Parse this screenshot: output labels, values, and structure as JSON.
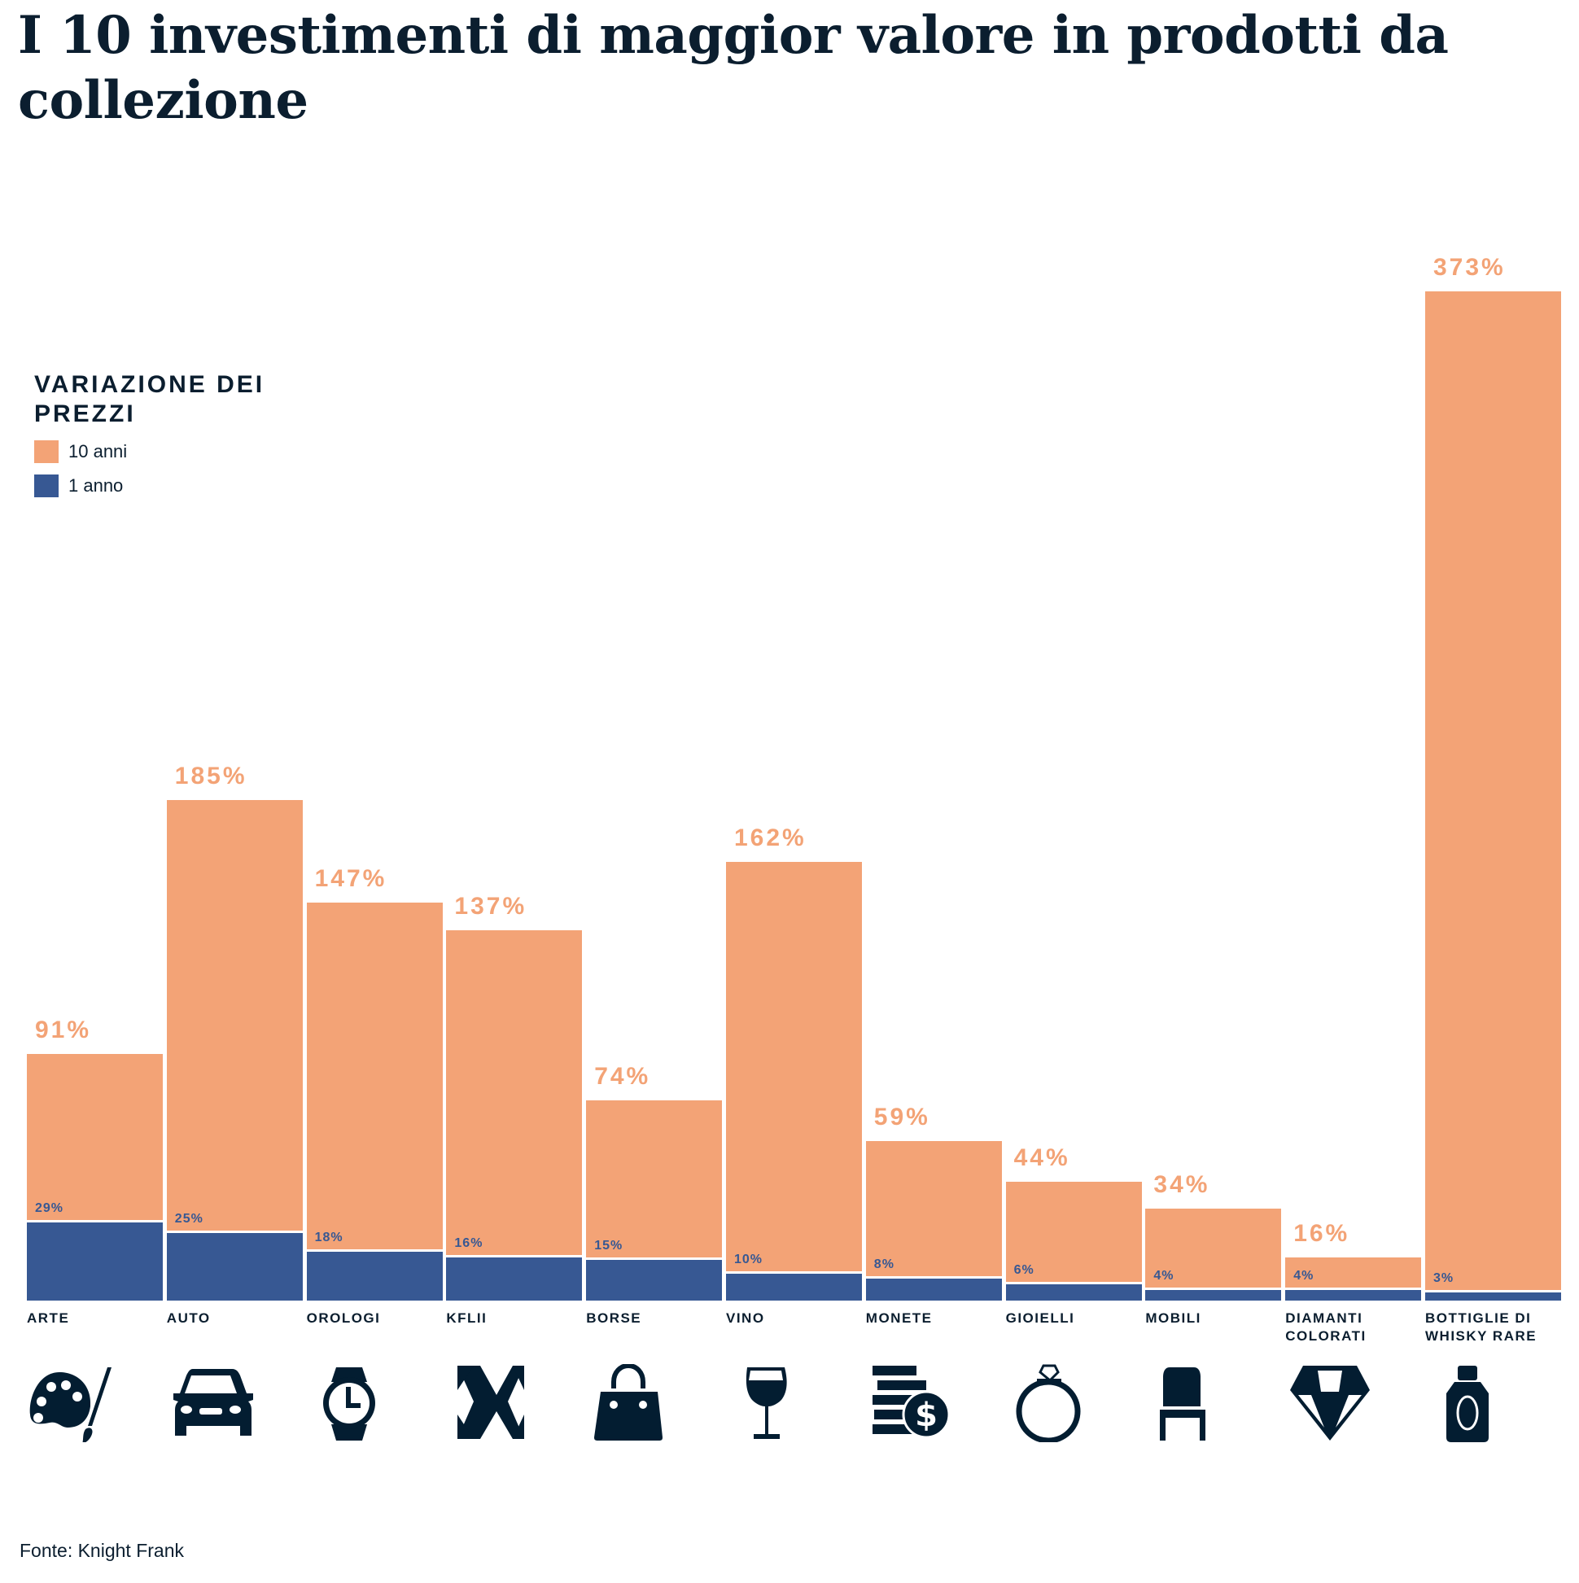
{
  "title": "I 10 investimenti di maggior valore in prodotti da collezione",
  "legend": {
    "title": "VARIAZIONE DEI PREZZI",
    "items": [
      {
        "label": "10 anni",
        "color": "#f3a376"
      },
      {
        "label": "1 anno",
        "color": "#375893"
      }
    ]
  },
  "footer": "Fonte: Knight Frank",
  "chart_data": {
    "type": "bar",
    "title": "I 10 investimenti di maggior valore in prodotti da collezione",
    "categories": [
      "ARTE",
      "AUTO",
      "OROLOGI",
      "KFLII",
      "BORSE",
      "VINO",
      "MONETE",
      "GIOIELLI",
      "MOBILI",
      "DIAMANTI COLORATI",
      "BOTTIGLIE DI WHISKY RARE"
    ],
    "icons": [
      "palette-icon",
      "car-icon",
      "watch-icon",
      "kflii-icon",
      "handbag-icon",
      "wine-glass-icon",
      "coins-icon",
      "ring-icon",
      "chair-icon",
      "diamond-icon",
      "whisky-bottle-icon"
    ],
    "series": [
      {
        "name": "10 anni",
        "color": "#f3a376",
        "values": [
          91,
          185,
          147,
          137,
          74,
          162,
          59,
          44,
          34,
          16,
          373
        ],
        "labels": [
          "91%",
          "185%",
          "147%",
          "137%",
          "74%",
          "162%",
          "59%",
          "44%",
          "34%",
          "16%",
          "373%"
        ]
      },
      {
        "name": "1 anno",
        "color": "#375893",
        "values": [
          29,
          25,
          18,
          16,
          15,
          10,
          8,
          6,
          4,
          4,
          3
        ],
        "labels": [
          "29%",
          "25%",
          "18%",
          "16%",
          "15%",
          "10%",
          "8%",
          "6%",
          "4%",
          "4%",
          "3%"
        ]
      }
    ],
    "ylim": [
      0,
      373
    ],
    "grid": false,
    "legend_position": "left"
  }
}
